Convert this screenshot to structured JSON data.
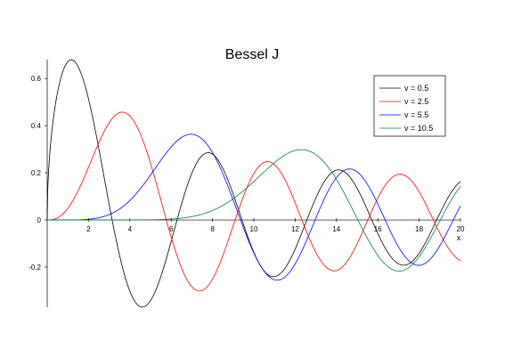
{
  "chart_data": {
    "type": "line",
    "title": "Bessel J",
    "xlabel": "x",
    "ylabel": "",
    "xlim": [
      0,
      20
    ],
    "ylim": [
      -0.37,
      0.68
    ],
    "xticks": [
      2,
      4,
      6,
      8,
      10,
      12,
      14,
      16,
      18,
      20
    ],
    "yticks": [
      -0.2,
      0,
      0.2,
      0.4,
      0.6
    ],
    "ytick_labels": [
      "-0.2",
      "0",
      "0.2",
      "0.4",
      "0.6"
    ],
    "grid": false,
    "legend_position": "top-right",
    "series": [
      {
        "name": "v = 0.5",
        "order": 0.5,
        "color": "#000000",
        "function": "besselj"
      },
      {
        "name": "v = 2.5",
        "order": 2.5,
        "color": "#ff0000",
        "function": "besselj"
      },
      {
        "name": "v = 5.5",
        "order": 5.5,
        "color": "#0000ff",
        "function": "besselj"
      },
      {
        "name": "v = 10.5",
        "order": 10.5,
        "color": "#008040",
        "function": "besselj"
      }
    ]
  }
}
